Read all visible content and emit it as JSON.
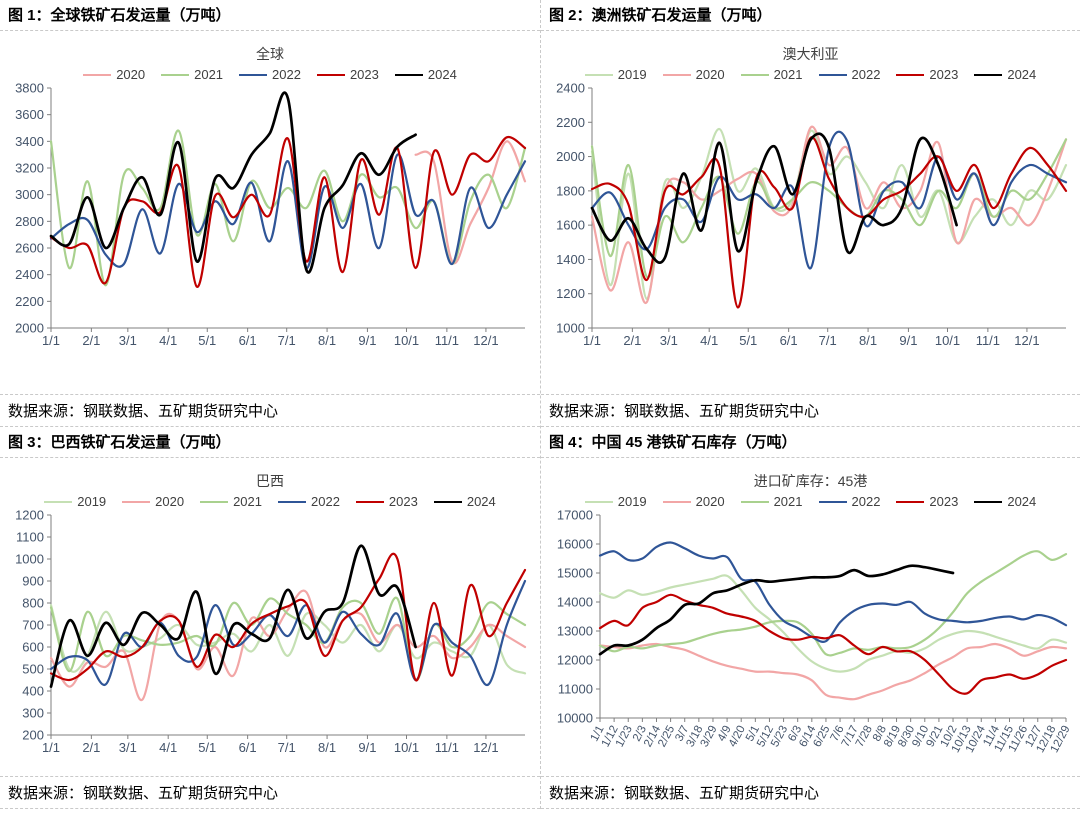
{
  "figures": [
    {
      "title": "图 1：全球铁矿石发运量（万吨）",
      "source": "数据来源：钢联数据、五矿期货研究中心"
    },
    {
      "title": "图 2：澳洲铁矿石发运量（万吨）",
      "source": "数据来源：钢联数据、五矿期货研究中心"
    },
    {
      "title": "图 3：巴西铁矿石发运量（万吨）",
      "source": "数据来源：钢联数据、五矿期货研究中心"
    },
    {
      "title": "图 4：中国 45 港铁矿石库存（万吨）",
      "source": "数据来源：钢联数据、五矿期货研究中心"
    }
  ],
  "colors": {
    "axis": "#7f7f7f",
    "tick_label": "#44546a",
    "y2019": "#c5e0b4",
    "y2020": "#f2a6a6",
    "y2021": "#a9d18e",
    "y2022": "#2f5597",
    "y2023": "#c00000",
    "y2024": "#000000"
  },
  "chart_data": [
    {
      "type": "line",
      "title": "全球",
      "ylim": [
        2000,
        3800
      ],
      "ytick_step": 200,
      "x_count": 27,
      "x_even": false,
      "x_rotate": false,
      "x_ticks": [
        "1/1",
        "2/1",
        "3/1",
        "4/1",
        "5/1",
        "6/1",
        "7/1",
        "8/1",
        "9/1",
        "10/1",
        "11/1",
        "12/1"
      ],
      "legend_position": "top",
      "grid": false,
      "series": [
        {
          "name": "2020",
          "color": "#f2a6a6",
          "values": [
            null,
            null,
            null,
            null,
            null,
            null,
            null,
            null,
            null,
            null,
            null,
            null,
            null,
            null,
            null,
            null,
            null,
            null,
            null,
            null,
            3300,
            3250,
            2500,
            2780,
            3050,
            3400,
            3100
          ]
        },
        {
          "name": "2021",
          "color": "#a9d18e",
          "values": [
            3400,
            2450,
            3100,
            2320,
            3150,
            3050,
            2900,
            3480,
            2700,
            3080,
            2650,
            3100,
            2900,
            3050,
            2900,
            3180,
            2800,
            3150,
            2980,
            3050,
            2750,
            2950,
            2480,
            2950,
            3150,
            2900,
            3350
          ]
        },
        {
          "name": "2022",
          "color": "#2f5597",
          "values": [
            2670,
            2780,
            2810,
            2550,
            2480,
            2890,
            2560,
            3080,
            2720,
            2950,
            2780,
            3090,
            2650,
            3250,
            2450,
            3060,
            2750,
            3080,
            2600,
            3300,
            2850,
            2950,
            2480,
            3050,
            2750,
            3000,
            3250
          ]
        },
        {
          "name": "2023",
          "color": "#c00000",
          "values": [
            2680,
            2600,
            2620,
            2340,
            2900,
            2950,
            2870,
            3210,
            2310,
            2990,
            2830,
            3000,
            2850,
            3420,
            2500,
            3130,
            2420,
            3260,
            2850,
            3350,
            2450,
            3320,
            3000,
            3300,
            3250,
            3430,
            3350
          ]
        },
        {
          "name": "2024",
          "color": "#000000",
          "values": [
            2690,
            2630,
            2980,
            2600,
            2900,
            3130,
            2850,
            3390,
            2500,
            3120,
            3050,
            3300,
            3460,
            3720,
            2440,
            2900,
            3070,
            3310,
            3150,
            3360,
            3450
          ]
        }
      ]
    },
    {
      "type": "line",
      "title": "澳大利亚",
      "ylim": [
        1000,
        2400
      ],
      "ytick_step": 200,
      "x_count": 27,
      "x_even": false,
      "x_rotate": false,
      "x_ticks": [
        "1/1",
        "2/1",
        "3/1",
        "4/1",
        "5/1",
        "6/1",
        "7/1",
        "8/1",
        "9/1",
        "10/1",
        "11/1",
        "12/1"
      ],
      "legend_position": "top",
      "grid": false,
      "series": [
        {
          "name": "2019",
          "color": "#c5e0b4",
          "values": [
            2030,
            1250,
            1900,
            1170,
            1850,
            1700,
            1880,
            2160,
            1800,
            1930,
            1700,
            1750,
            2150,
            1900,
            2000,
            1850,
            1700,
            1950,
            1650,
            1800,
            1500,
            1650,
            1750,
            1600,
            1800,
            1750,
            1950
          ]
        },
        {
          "name": "2020",
          "color": "#f2a6a6",
          "values": [
            1650,
            1220,
            1500,
            1150,
            1800,
            1850,
            1750,
            1800,
            1870,
            1900,
            1680,
            1720,
            2170,
            1950,
            2050,
            1700,
            1850,
            1700,
            1800,
            2080,
            1500,
            1750,
            1650,
            1700,
            1600,
            1800,
            2100
          ]
        },
        {
          "name": "2021",
          "color": "#a9d18e",
          "values": [
            2060,
            1420,
            1950,
            1300,
            1650,
            1500,
            1700,
            1880,
            1550,
            1850,
            1700,
            1750,
            1850,
            1800,
            1700,
            1650,
            1800,
            1750,
            1600,
            1800,
            1700,
            1900,
            1650,
            1800,
            1750,
            1900,
            2100
          ]
        },
        {
          "name": "2022",
          "color": "#2f5597",
          "values": [
            1700,
            1790,
            1600,
            1460,
            1700,
            1750,
            1620,
            1880,
            1750,
            1780,
            1700,
            1820,
            1350,
            2050,
            2090,
            1600,
            1800,
            1850,
            1700,
            2000,
            1750,
            1900,
            1600,
            1850,
            1950,
            1900,
            1850
          ]
        },
        {
          "name": "2023",
          "color": "#c00000",
          "values": [
            1810,
            1840,
            1720,
            1280,
            1800,
            1780,
            1880,
            1940,
            1120,
            1870,
            1820,
            1700,
            2110,
            1870,
            1700,
            1650,
            1750,
            1800,
            1900,
            2000,
            1800,
            1950,
            1700,
            1900,
            2050,
            1950,
            1800
          ]
        },
        {
          "name": "2024",
          "color": "#000000",
          "values": [
            1700,
            1510,
            1640,
            1460,
            1410,
            1900,
            1570,
            2080,
            1450,
            1850,
            2060,
            1780,
            2100,
            2050,
            1450,
            1650,
            1600,
            1700,
            2100,
            1950,
            1600
          ]
        }
      ]
    },
    {
      "type": "line",
      "title": "巴西",
      "ylim": [
        200,
        1200
      ],
      "ytick_step": 100,
      "x_count": 27,
      "x_even": false,
      "x_rotate": false,
      "x_ticks": [
        "1/1",
        "2/1",
        "3/1",
        "4/1",
        "5/1",
        "6/1",
        "7/1",
        "8/1",
        "9/1",
        "10/1",
        "11/1",
        "12/1"
      ],
      "legend_position": "top",
      "grid": false,
      "series": [
        {
          "name": "2019",
          "color": "#c5e0b4",
          "values": [
            790,
            500,
            560,
            760,
            590,
            600,
            640,
            700,
            610,
            620,
            660,
            580,
            700,
            560,
            750,
            700,
            620,
            700,
            580,
            700,
            550,
            620,
            580,
            560,
            700,
            520,
            480
          ]
        },
        {
          "name": "2020",
          "color": "#f2a6a6",
          "values": [
            550,
            420,
            530,
            510,
            580,
            360,
            710,
            720,
            500,
            600,
            470,
            730,
            650,
            770,
            850,
            600,
            720,
            750,
            620,
            700,
            600,
            650,
            550,
            600,
            700,
            650,
            600
          ]
        },
        {
          "name": "2021",
          "color": "#a9d18e",
          "values": [
            780,
            490,
            760,
            560,
            650,
            630,
            610,
            620,
            650,
            610,
            800,
            700,
            820,
            750,
            700,
            620,
            780,
            800,
            660,
            820,
            450,
            700,
            600,
            650,
            800,
            750,
            700
          ]
        },
        {
          "name": "2022",
          "color": "#2f5597",
          "values": [
            500,
            555,
            540,
            430,
            660,
            600,
            710,
            560,
            555,
            790,
            610,
            660,
            745,
            650,
            790,
            620,
            760,
            660,
            610,
            750,
            450,
            700,
            620,
            560,
            430,
            700,
            900
          ]
        },
        {
          "name": "2023",
          "color": "#c00000",
          "values": [
            480,
            450,
            500,
            580,
            555,
            600,
            720,
            720,
            510,
            655,
            600,
            705,
            750,
            785,
            800,
            560,
            720,
            780,
            910,
            1000,
            450,
            800,
            470,
            880,
            650,
            800,
            950
          ]
        },
        {
          "name": "2024",
          "color": "#000000",
          "values": [
            420,
            720,
            560,
            710,
            610,
            755,
            700,
            640,
            850,
            480,
            700,
            660,
            640,
            860,
            640,
            760,
            800,
            1060,
            840,
            870,
            600
          ]
        }
      ]
    },
    {
      "type": "line",
      "title": "进口矿库存：45港",
      "ylim": [
        10000,
        17000
      ],
      "ytick_step": 1000,
      "x_count": 34,
      "x_even": true,
      "x_rotate": true,
      "x_ticks": [
        "1/1",
        "1/12",
        "1/23",
        "2/3",
        "2/14",
        "2/25",
        "3/7",
        "3/18",
        "3/29",
        "4/9",
        "4/20",
        "5/1",
        "5/12",
        "5/23",
        "6/3",
        "6/14",
        "6/25",
        "7/6",
        "7/17",
        "7/28",
        "8/8",
        "8/19",
        "8/30",
        "9/10",
        "9/21",
        "10/2",
        "10/13",
        "10/24",
        "11/4",
        "11/15",
        "11/26",
        "12/7",
        "12/18",
        "12/29"
      ],
      "legend_position": "top",
      "grid": false,
      "series": [
        {
          "name": "2019",
          "color": "#c5e0b4",
          "values": [
            14300,
            14150,
            14400,
            14250,
            14350,
            14500,
            14600,
            14700,
            14800,
            14900,
            14400,
            13800,
            13400,
            12950,
            12400,
            11950,
            11700,
            11600,
            11700,
            12000,
            12150,
            12300,
            12250,
            12400,
            12700,
            12900,
            13000,
            12950,
            12800,
            12650,
            12500,
            12400,
            12700,
            12600
          ]
        },
        {
          "name": "2020",
          "color": "#f2a6a6",
          "values": [
            12500,
            12450,
            12400,
            12500,
            12550,
            12450,
            12350,
            12150,
            11950,
            11800,
            11700,
            11600,
            11600,
            11550,
            11500,
            11300,
            10800,
            10700,
            10650,
            10800,
            10950,
            11150,
            11300,
            11550,
            11850,
            12100,
            12400,
            12450,
            12550,
            12400,
            12150,
            12300,
            12450,
            12400
          ]
        },
        {
          "name": "2021",
          "color": "#a9d18e",
          "values": [
            12500,
            12300,
            12450,
            12400,
            12500,
            12550,
            12600,
            12750,
            12900,
            13000,
            13050,
            13150,
            13300,
            13350,
            13300,
            12900,
            12200,
            12250,
            12400,
            12350,
            12450,
            12400,
            12450,
            12700,
            13100,
            13650,
            14300,
            14700,
            15000,
            15300,
            15600,
            15750,
            15450,
            15650
          ]
        },
        {
          "name": "2022",
          "color": "#2f5597",
          "values": [
            15600,
            15750,
            15450,
            15500,
            15900,
            16050,
            15850,
            15600,
            15500,
            15550,
            14800,
            14700,
            13900,
            13350,
            13100,
            12800,
            12650,
            13300,
            13700,
            13900,
            13950,
            13900,
            14000,
            13600,
            13400,
            13350,
            13300,
            13350,
            13450,
            13500,
            13400,
            13550,
            13450,
            13200
          ]
        },
        {
          "name": "2023",
          "color": "#c00000",
          "values": [
            13100,
            13350,
            13200,
            13800,
            14000,
            14250,
            14050,
            13900,
            13800,
            13600,
            13500,
            13350,
            13000,
            12750,
            12700,
            12800,
            12750,
            12850,
            12500,
            12200,
            12450,
            12300,
            12300,
            12000,
            11500,
            11000,
            10850,
            11300,
            11400,
            11500,
            11350,
            11500,
            11800,
            12000
          ]
        },
        {
          "name": "2024",
          "color": "#000000",
          "values": [
            12200,
            12500,
            12500,
            12700,
            13100,
            13400,
            13900,
            13950,
            14300,
            14400,
            14600,
            14750,
            14700,
            14750,
            14800,
            14850,
            14850,
            14900,
            15100,
            14900,
            14950,
            15100,
            15250,
            15200,
            15100,
            15000
          ]
        }
      ]
    }
  ]
}
